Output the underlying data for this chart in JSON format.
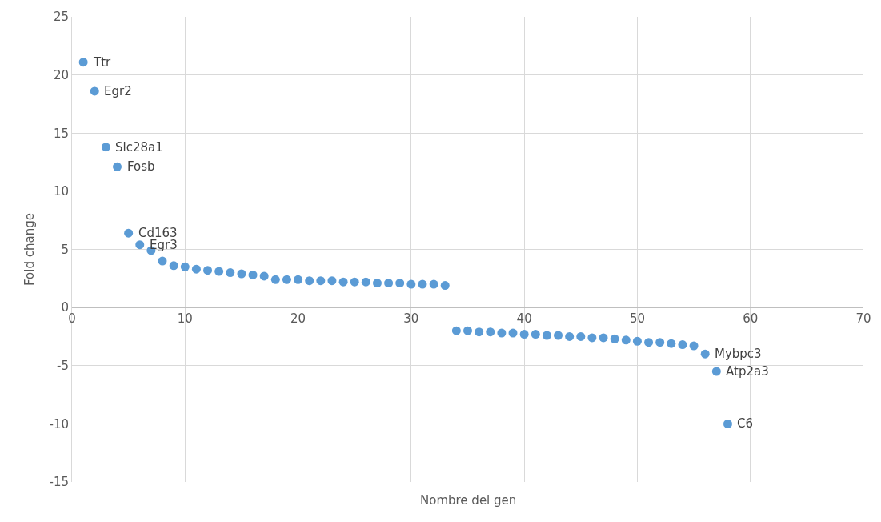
{
  "chart_data": {
    "type": "scatter",
    "xlabel": "Nombre del gen",
    "ylabel": "Fold change",
    "x": [
      1,
      2,
      3,
      4,
      5,
      6,
      7,
      8,
      9,
      10,
      11,
      12,
      13,
      14,
      15,
      16,
      17,
      18,
      19,
      20,
      21,
      22,
      23,
      24,
      25,
      26,
      27,
      28,
      29,
      30,
      31,
      32,
      33,
      34,
      35,
      36,
      37,
      38,
      39,
      40,
      41,
      42,
      43,
      44,
      45,
      46,
      47,
      48,
      49,
      50,
      51,
      52,
      53,
      54,
      55,
      56,
      57,
      58
    ],
    "series": [
      {
        "color": "#5b9bd5",
        "values": [
          21.1,
          18.6,
          13.8,
          12.1,
          6.4,
          5.4,
          4.9,
          4.0,
          3.6,
          3.5,
          3.3,
          3.2,
          3.1,
          3.0,
          2.9,
          2.8,
          2.7,
          2.4,
          2.4,
          2.4,
          2.3,
          2.3,
          2.3,
          2.2,
          2.2,
          2.2,
          2.1,
          2.1,
          2.1,
          2.0,
          2.0,
          2.0,
          1.9,
          -2.0,
          -2.0,
          -2.1,
          -2.1,
          -2.2,
          -2.2,
          -2.3,
          -2.3,
          -2.4,
          -2.4,
          -2.5,
          -2.5,
          -2.6,
          -2.6,
          -2.7,
          -2.8,
          -2.9,
          -3.0,
          -3.0,
          -3.1,
          -3.2,
          -3.3,
          -4.0,
          -5.5,
          -10.0
        ]
      }
    ],
    "annotations": [
      {
        "text": "Ttr",
        "x": 1,
        "y": 21.1
      },
      {
        "text": "Egr2",
        "x": 2,
        "y": 18.6
      },
      {
        "text": "Slc28a1",
        "x": 3,
        "y": 13.8
      },
      {
        "text": "Fosb",
        "x": 4,
        "y": 12.1
      },
      {
        "text": "Cd163",
        "x": 5,
        "y": 6.4
      },
      {
        "text": "Egr3",
        "x": 6,
        "y": 5.4
      },
      {
        "text": "Mybpc3",
        "x": 56,
        "y": -4.0
      },
      {
        "text": "Atp2a3",
        "x": 57,
        "y": -5.5
      },
      {
        "text": "C6",
        "x": 58,
        "y": -10.0
      }
    ],
    "xlim": [
      0,
      70
    ],
    "xticks": [
      0,
      10,
      20,
      30,
      40,
      50,
      60,
      70
    ],
    "ylim": [
      -15,
      25
    ],
    "yticks": [
      -15,
      -10,
      -5,
      0,
      5,
      10,
      15,
      20,
      25
    ],
    "grid": true,
    "marker": "circle",
    "legend": false
  }
}
